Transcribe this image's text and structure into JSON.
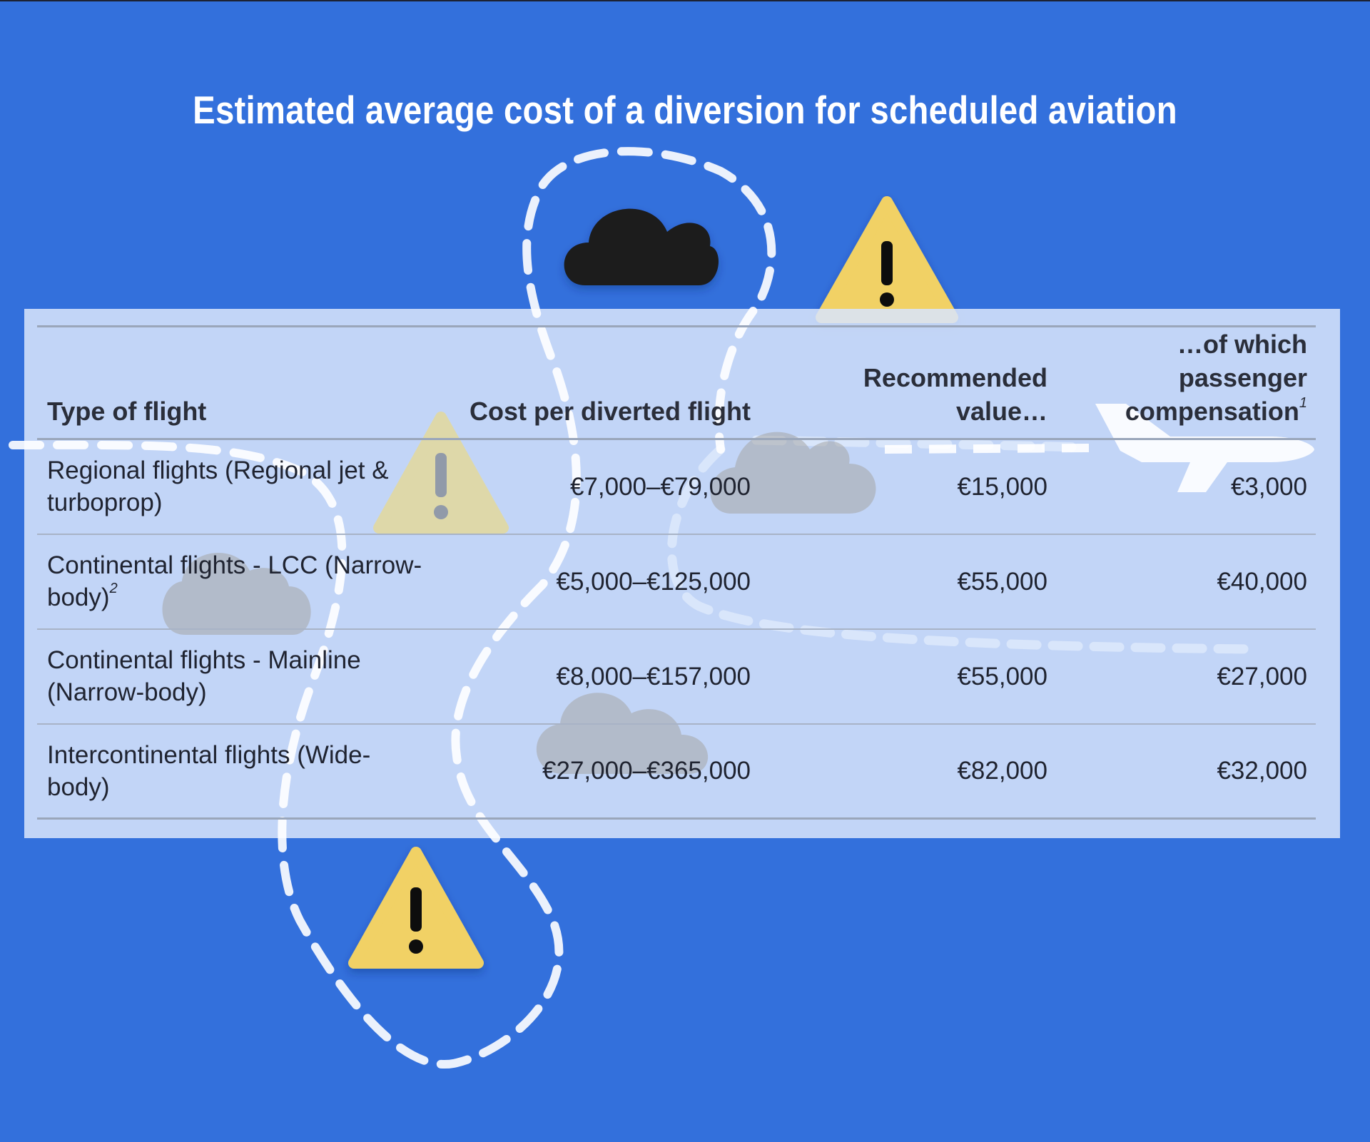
{
  "title": "Estimated average cost of a diversion for scheduled aviation",
  "colors": {
    "background": "#3370dc",
    "panel": "#d8e5fa",
    "warning_yellow": "#f1d165",
    "dark_cloud": "#1b1b1b",
    "light_cloud": "#b8b8b8",
    "text": "#1f2330"
  },
  "decorations": {
    "icons": [
      "storm-cloud-icon",
      "warning-triangle-icon",
      "cloud-icon",
      "airplane-icon",
      "dashed-flight-path"
    ]
  },
  "table": {
    "headers": {
      "type": "Type of flight",
      "cost": "Cost per diverted flight",
      "recommended": "Recommended value…",
      "compensation": "…of which passenger compensation",
      "compensation_note": "1"
    },
    "rows": [
      {
        "type": "Regional flights (Regional jet & turboprop)",
        "note": "",
        "cost": "€7,000–€79,000",
        "recommended": "€15,000",
        "compensation": "€3,000"
      },
      {
        "type": "Continental flights - LCC (Narrow-body)",
        "note": "2",
        "cost": "€5,000–€125,000",
        "recommended": "€55,000",
        "compensation": "€40,000"
      },
      {
        "type": "Continental flights - Mainline (Narrow-body)",
        "note": "",
        "cost": "€8,000–€157,000",
        "recommended": "€55,000",
        "compensation": "€27,000"
      },
      {
        "type": "Intercontinental flights (Wide-body)",
        "note": "",
        "cost": "€27,000–€365,000",
        "recommended": "€82,000",
        "compensation": "€32,000"
      }
    ]
  }
}
